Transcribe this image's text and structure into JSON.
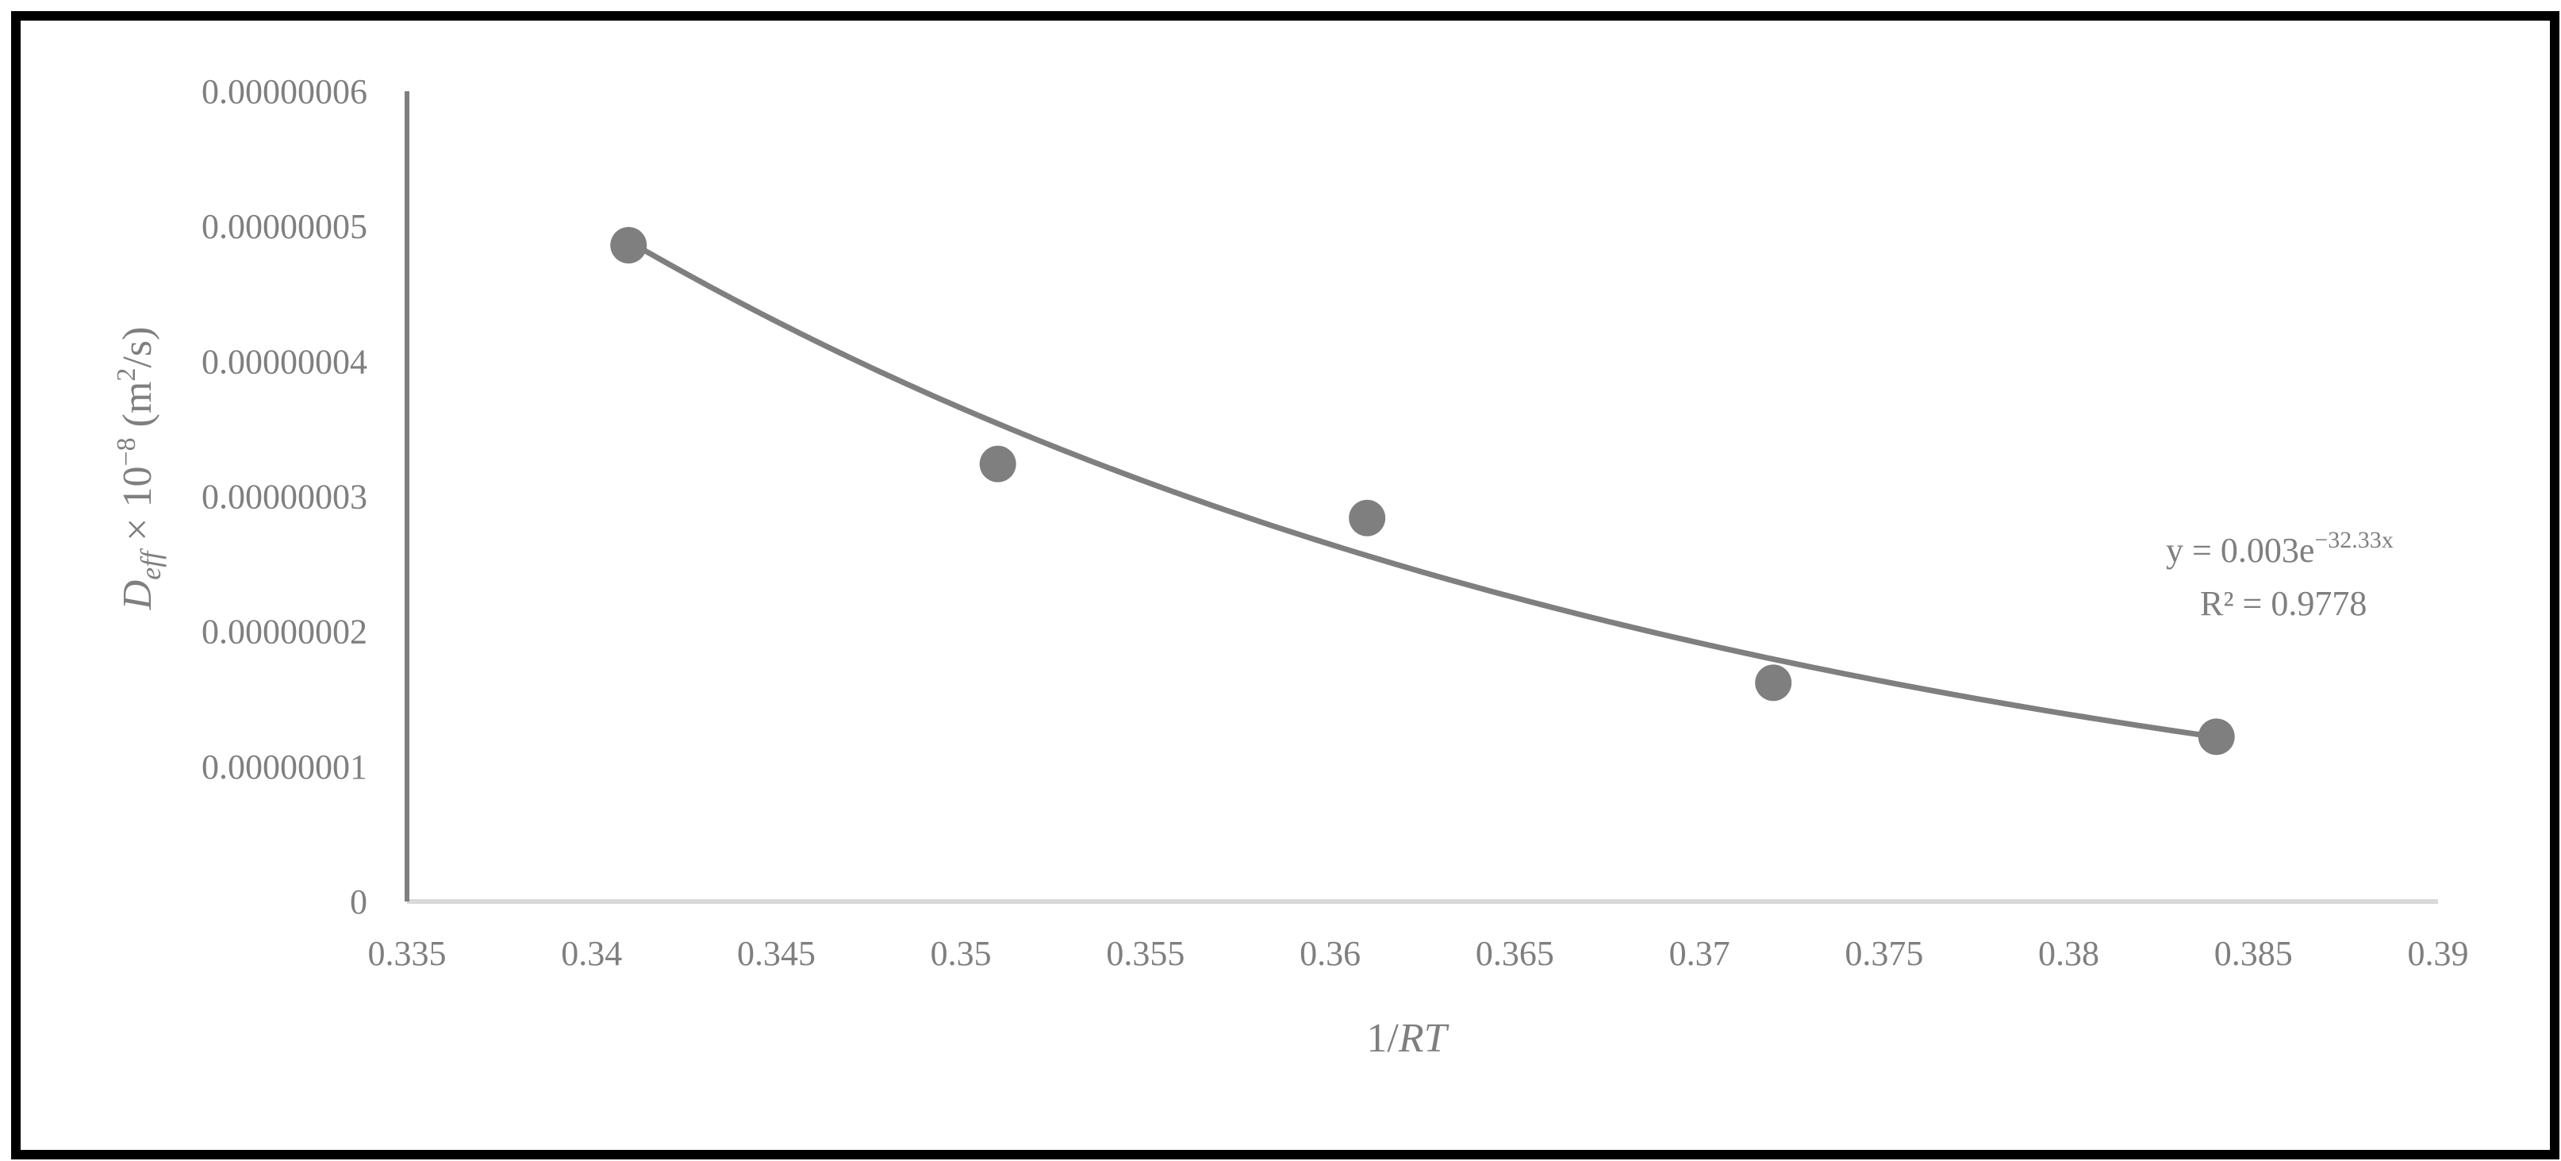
{
  "chart_data": {
    "type": "scatter",
    "title": "",
    "xlabel": {
      "main": "1/",
      "italic": "RT"
    },
    "ylabel": {
      "italic": "D",
      "sub": "eff",
      "rest": " × 10",
      "sup": "−8",
      "unit": " (m",
      "unit_sup": "2",
      "unit_end": "/s)"
    },
    "xlim": [
      0.335,
      0.39
    ],
    "ylim": [
      0,
      6e-08
    ],
    "x_ticks": [
      0.335,
      0.34,
      0.345,
      0.35,
      0.355,
      0.36,
      0.365,
      0.37,
      0.375,
      0.38,
      0.385,
      0.39
    ],
    "x_tick_labels": [
      "0.335",
      "0.34",
      "0.345",
      "0.35",
      "0.355",
      "0.36",
      "0.365",
      "0.37",
      "0.375",
      "0.38",
      "0.385",
      "0.39"
    ],
    "y_ticks": [
      0,
      1e-08,
      2e-08,
      3e-08,
      4e-08,
      5e-08,
      6e-08
    ],
    "y_tick_labels": [
      "0",
      "0.00000001",
      "0.00000002",
      "0.00000003",
      "0.00000004",
      "0.00000005",
      "0.00000006"
    ],
    "grid": false,
    "series": [
      {
        "x": [
          0.341,
          0.351,
          0.361,
          0.372,
          0.384
        ],
        "y": [
          4.86e-08,
          3.24e-08,
          2.84e-08,
          1.62e-08,
          1.22e-08
        ],
        "color": "#7f7f7f"
      }
    ],
    "trendline": {
      "type": "exponential",
      "a": 0.003,
      "b": -32.33,
      "color": "#7f7f7f",
      "equation": {
        "prefix": "y = 0.003e",
        "exponent": "−32.33x"
      },
      "r_squared": "R² = 0.9778"
    }
  }
}
